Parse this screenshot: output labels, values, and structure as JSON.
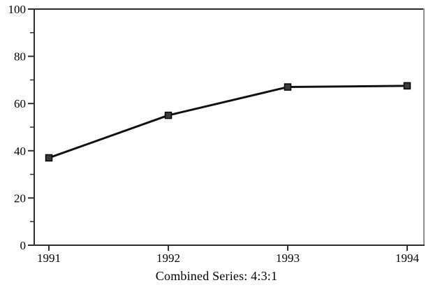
{
  "chart_data": {
    "type": "line",
    "categories": [
      "1991",
      "1992",
      "1993",
      "1994"
    ],
    "series": [
      {
        "name": "Combined Series",
        "values": [
          37,
          55,
          67,
          67.5
        ]
      }
    ],
    "title": "",
    "caption": "Combined Series: 4:3:1",
    "xlabel": "",
    "ylabel": "",
    "ylim": [
      0,
      100
    ],
    "yticks_major": [
      0,
      20,
      40,
      60,
      80,
      100
    ],
    "yticks_minor": [
      10,
      30,
      50,
      70,
      90
    ],
    "grid": false,
    "legend_position": "none",
    "marker": "filled-square",
    "colors": {
      "line": "#111111",
      "marker_fill": "#3a3a3a",
      "marker_stroke": "#000000",
      "axis": "#2e2e2e",
      "frame_right": "#8f8f8f",
      "tick": "#2e2e2e",
      "text": "#000000",
      "background": "#ffffff"
    }
  }
}
